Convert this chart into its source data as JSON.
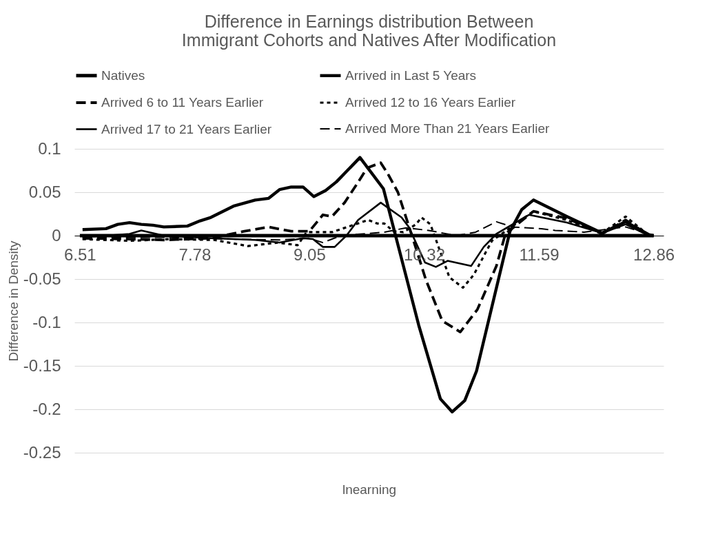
{
  "chart_data": {
    "type": "line",
    "title": "Difference in Earnings distribution Between Immigrant Cohorts and Natives After Modification",
    "xlabel": "lnearning",
    "ylabel": "Difference in Density",
    "xlim": [
      6.45,
      12.97
    ],
    "xticks": [
      6.51,
      7.78,
      9.05,
      10.32,
      11.59,
      12.86
    ],
    "ylim": [
      -0.25,
      0.1
    ],
    "yticks": [
      -0.25,
      -0.2,
      -0.15,
      -0.1,
      -0.05,
      0,
      0.05,
      0.1
    ],
    "grid": "y",
    "legend": "top",
    "series": [
      {
        "name": "Natives",
        "color": "#000000",
        "line_style": "solid",
        "x": [
          6.51,
          7.78,
          9.05,
          10.32,
          11.59,
          12.86
        ],
        "values": [
          0,
          0,
          0,
          0,
          0,
          0
        ]
      },
      {
        "name": "Arrived in Last 5 Years",
        "color": "#000000",
        "line_style": "solid",
        "x": [
          6.54,
          6.8,
          6.93,
          7.06,
          7.19,
          7.32,
          7.44,
          7.7,
          7.84,
          7.96,
          8.21,
          8.45,
          8.6,
          8.72,
          8.85,
          8.98,
          9.1,
          9.23,
          9.35,
          9.61,
          9.87,
          10.26,
          10.5,
          10.63,
          10.77,
          10.9,
          11.27,
          11.4,
          11.53,
          11.9,
          12.29,
          12.55,
          12.81,
          12.86
        ],
        "values": [
          0.007,
          0.008,
          0.013,
          0.015,
          0.013,
          0.012,
          0.01,
          0.011,
          0.017,
          0.021,
          0.034,
          0.041,
          0.043,
          0.053,
          0.056,
          0.056,
          0.045,
          0.052,
          0.062,
          0.09,
          0.054,
          -0.103,
          -0.188,
          -0.203,
          -0.19,
          -0.156,
          0.005,
          0.03,
          0.041,
          0.022,
          0.003,
          0.016,
          0.001,
          0
        ]
      },
      {
        "name": "Arrived 6 to 11 Years Earlier",
        "color": "#000000",
        "line_style": "dashed",
        "x": [
          6.54,
          7.06,
          7.44,
          7.96,
          8.33,
          8.6,
          8.85,
          9.05,
          9.2,
          9.3,
          9.44,
          9.58,
          9.69,
          9.84,
          9.92,
          10.03,
          10.21,
          10.34,
          10.52,
          10.72,
          10.91,
          11.12,
          11.22,
          11.53,
          11.9,
          12.29,
          12.55,
          12.81,
          12.86
        ],
        "values": [
          -0.003,
          -0.004,
          -0.005,
          -0.003,
          0.005,
          0.01,
          0.005,
          0.005,
          0.024,
          0.022,
          0.038,
          0.06,
          0.078,
          0.084,
          0.071,
          0.05,
          -0.008,
          -0.051,
          -0.098,
          -0.111,
          -0.085,
          -0.035,
          0.002,
          0.028,
          0.02,
          0.002,
          0.018,
          0,
          0
        ]
      },
      {
        "name": "Arrived 12 to 16 Years Earlier",
        "color": "#000000",
        "line_style": "dotted",
        "x": [
          6.54,
          7.06,
          7.5,
          8.0,
          8.37,
          8.7,
          8.92,
          9.02,
          9.3,
          9.7,
          9.8,
          9.88,
          9.98,
          10.09,
          10.23,
          10.29,
          10.39,
          10.6,
          10.75,
          10.87,
          11.07,
          11.22,
          11.53,
          11.9,
          12.29,
          12.55,
          12.81,
          12.86
        ],
        "values": [
          -0.004,
          -0.006,
          -0.004,
          -0.005,
          -0.012,
          -0.008,
          -0.011,
          0.004,
          0.004,
          0.018,
          0.014,
          0.014,
          0.005,
          0.004,
          0.013,
          0.021,
          0.013,
          -0.048,
          -0.06,
          -0.045,
          -0.006,
          0.005,
          0.028,
          0.018,
          0.003,
          0.022,
          0,
          0
        ]
      },
      {
        "name": "Arrived 17 to 21 Years Earlier",
        "color": "#000000",
        "line_style": "solid",
        "x": [
          6.54,
          7.06,
          7.19,
          7.44,
          7.96,
          8.45,
          8.72,
          8.98,
          9.09,
          9.2,
          9.33,
          9.46,
          9.59,
          9.84,
          10.07,
          10.15,
          10.33,
          10.45,
          10.58,
          10.84,
          10.98,
          11.12,
          11.48,
          11.9,
          12.29,
          12.55,
          12.81,
          12.86
        ],
        "values": [
          -0.002,
          0.002,
          0.006,
          0,
          -0.003,
          -0.005,
          -0.008,
          -0.003,
          -0.004,
          -0.013,
          -0.013,
          0,
          0.018,
          0.038,
          0.021,
          0.01,
          -0.031,
          -0.036,
          -0.029,
          -0.035,
          -0.013,
          0.002,
          0.024,
          0.015,
          0.003,
          0.013,
          0,
          0
        ]
      },
      {
        "name": "Arrived More Than 21 Years Earlier",
        "color": "#000000",
        "line_style": "dashed",
        "x": [
          6.54,
          7.44,
          8.21,
          8.72,
          9.05,
          9.2,
          9.4,
          9.88,
          10.12,
          10.37,
          10.68,
          10.89,
          11.12,
          11.3,
          11.62,
          11.77,
          12.09,
          12.55,
          12.86
        ],
        "values": [
          -0.002,
          -0.002,
          -0.004,
          -0.005,
          -0.003,
          -0.008,
          0,
          0.004,
          0.009,
          0.006,
          0,
          0.004,
          0.016,
          0.01,
          0.008,
          0.006,
          0.004,
          0.01,
          0
        ]
      }
    ]
  }
}
